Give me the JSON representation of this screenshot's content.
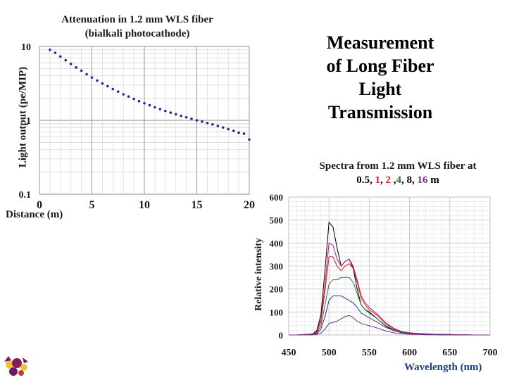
{
  "headline": [
    "Measurement",
    "of Long Fiber",
    "Light",
    "Transmission"
  ],
  "chart_data": [
    {
      "type": "scatter",
      "title_lines": [
        "Attenuation in 1.2 mm WLS fiber",
        "(bialkali photocathode)"
      ],
      "xlabel": "Distance (m)",
      "ylabel": "Light output (pe/MIP)",
      "yscale": "log",
      "xlim": [
        0,
        20
      ],
      "ylim": [
        0.1,
        10
      ],
      "xticks": [
        "0",
        "5",
        "10",
        "15",
        "20"
      ],
      "yticks": [
        "0.1",
        "1",
        "10"
      ],
      "grid": true,
      "point_color": "#1f2f8f",
      "x": [
        1.0,
        1.5,
        2.0,
        2.5,
        3.0,
        3.5,
        4.0,
        4.5,
        5.0,
        5.5,
        6.0,
        6.5,
        7.0,
        7.5,
        8.0,
        8.5,
        9.0,
        9.5,
        10.0,
        10.5,
        11.0,
        11.5,
        12.0,
        12.5,
        13.0,
        13.5,
        14.0,
        14.5,
        15.0,
        15.5,
        16.0,
        16.5,
        17.0,
        17.5,
        18.0,
        18.5,
        19.0,
        19.5,
        20.0
      ],
      "y": [
        9.0,
        8.2,
        7.3,
        6.5,
        5.8,
        5.2,
        4.7,
        4.2,
        3.8,
        3.45,
        3.15,
        2.9,
        2.65,
        2.45,
        2.25,
        2.1,
        1.95,
        1.82,
        1.7,
        1.6,
        1.5,
        1.42,
        1.34,
        1.27,
        1.21,
        1.15,
        1.1,
        1.05,
        1.0,
        0.96,
        0.92,
        0.88,
        0.84,
        0.8,
        0.76,
        0.72,
        0.68,
        0.66,
        0.55
      ]
    },
    {
      "type": "line",
      "title_lines": [
        "Spectra from 1.2 mm WLS fiber at"
      ],
      "title_parts": [
        {
          "text": "0.5",
          "color": "#000000"
        },
        {
          "text": ", ",
          "color": "#000000"
        },
        {
          "text": "1",
          "color": "#c2187a"
        },
        {
          "text": ", ",
          "color": "#000000"
        },
        {
          "text": "2",
          "color": "#d62020"
        },
        {
          "text": " ,",
          "color": "#000000"
        },
        {
          "text": "4",
          "color": "#2a7a2a"
        },
        {
          "text": ", 8, ",
          "color": "#000000"
        },
        {
          "text": "16",
          "color": "#7a2a8a"
        },
        {
          "text": " m",
          "color": "#000000"
        }
      ],
      "xlabel": "Wavelength (nm)",
      "ylabel": "Relative intensity",
      "xlim": [
        450,
        700
      ],
      "ylim": [
        0,
        600
      ],
      "xticks": [
        "450",
        "500",
        "550",
        "600",
        "650",
        "700"
      ],
      "yticks": [
        "0",
        "100",
        "200",
        "300",
        "400",
        "500",
        "600"
      ],
      "grid": true,
      "x": [
        450,
        460,
        470,
        480,
        485,
        490,
        495,
        500,
        505,
        510,
        515,
        520,
        525,
        530,
        535,
        540,
        545,
        550,
        560,
        570,
        580,
        590,
        600,
        610,
        620,
        630,
        640,
        650,
        660,
        670,
        680,
        690,
        700
      ],
      "series": [
        {
          "color": "#000000",
          "values": [
            0,
            0,
            2,
            5,
            20,
            90,
            280,
            490,
            470,
            380,
            300,
            320,
            330,
            290,
            200,
            130,
            110,
            100,
            70,
            40,
            20,
            10,
            8,
            6,
            4,
            3,
            2,
            2,
            1,
            1,
            0,
            0,
            0
          ]
        },
        {
          "color": "#c2187a",
          "values": [
            0,
            0,
            2,
            4,
            15,
            70,
            220,
            400,
            390,
            330,
            300,
            320,
            330,
            300,
            240,
            170,
            140,
            120,
            90,
            55,
            30,
            15,
            10,
            7,
            5,
            3,
            2,
            2,
            1,
            1,
            0,
            0,
            0
          ]
        },
        {
          "color": "#d62020",
          "values": [
            0,
            0,
            1,
            3,
            12,
            60,
            190,
            340,
            340,
            300,
            280,
            300,
            310,
            290,
            230,
            160,
            130,
            110,
            85,
            50,
            28,
            14,
            9,
            6,
            4,
            3,
            2,
            1,
            1,
            0,
            0,
            0,
            0
          ]
        },
        {
          "color": "#2a7a2a",
          "values": [
            0,
            0,
            1,
            2,
            8,
            40,
            130,
            220,
            240,
            240,
            250,
            250,
            250,
            230,
            180,
            130,
            110,
            95,
            70,
            42,
            24,
            12,
            8,
            5,
            3,
            2,
            1,
            1,
            0,
            0,
            0,
            0,
            0
          ]
        },
        {
          "color": "#2a2a9a",
          "values": [
            0,
            0,
            0,
            1,
            5,
            25,
            80,
            150,
            170,
            170,
            170,
            160,
            150,
            140,
            120,
            95,
            85,
            75,
            55,
            34,
            20,
            10,
            6,
            4,
            3,
            2,
            1,
            1,
            0,
            0,
            0,
            0,
            0
          ]
        },
        {
          "color": "#7a2a8a",
          "values": [
            0,
            0,
            0,
            1,
            2,
            8,
            25,
            50,
            55,
            60,
            70,
            80,
            85,
            75,
            60,
            50,
            45,
            40,
            30,
            18,
            10,
            5,
            3,
            2,
            1,
            1,
            0,
            0,
            0,
            0,
            0,
            0,
            0
          ]
        }
      ]
    }
  ],
  "logo": {
    "icon": "university-crest-icon"
  }
}
